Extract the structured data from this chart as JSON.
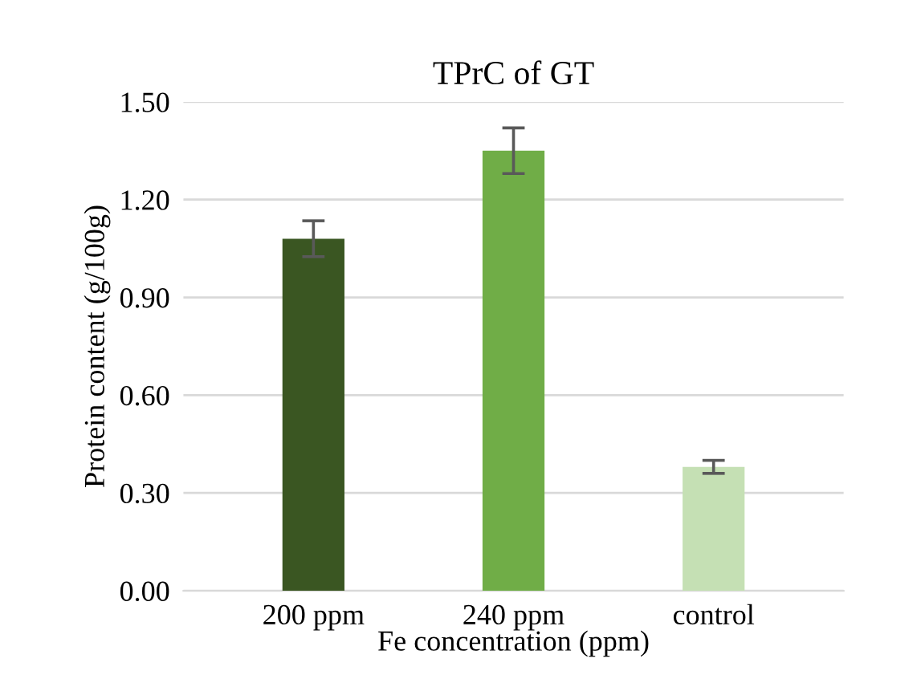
{
  "chart_data": {
    "type": "bar",
    "title": "TPrC of GT",
    "xlabel": "Fe concentration (ppm)",
    "ylabel": "Protein content (g/100g)",
    "categories": [
      "200 ppm",
      "240 ppm",
      "control"
    ],
    "values": [
      1.08,
      1.35,
      0.38
    ],
    "colors": [
      "#3a5622",
      "#70ad47",
      "#c5e0b4"
    ],
    "errors": [
      0.055,
      0.07,
      0.02
    ],
    "ylim": [
      0,
      1.5
    ],
    "yticks": [
      {
        "value": 0,
        "label": "0.00"
      },
      {
        "value": 0.3,
        "label": "0.30"
      },
      {
        "value": 0.6,
        "label": "0.60"
      },
      {
        "value": 0.9,
        "label": "0.90"
      },
      {
        "value": 1.2,
        "label": "1.20"
      },
      {
        "value": 1.5,
        "label": "1.50"
      }
    ],
    "grid": "y",
    "legend": false
  }
}
